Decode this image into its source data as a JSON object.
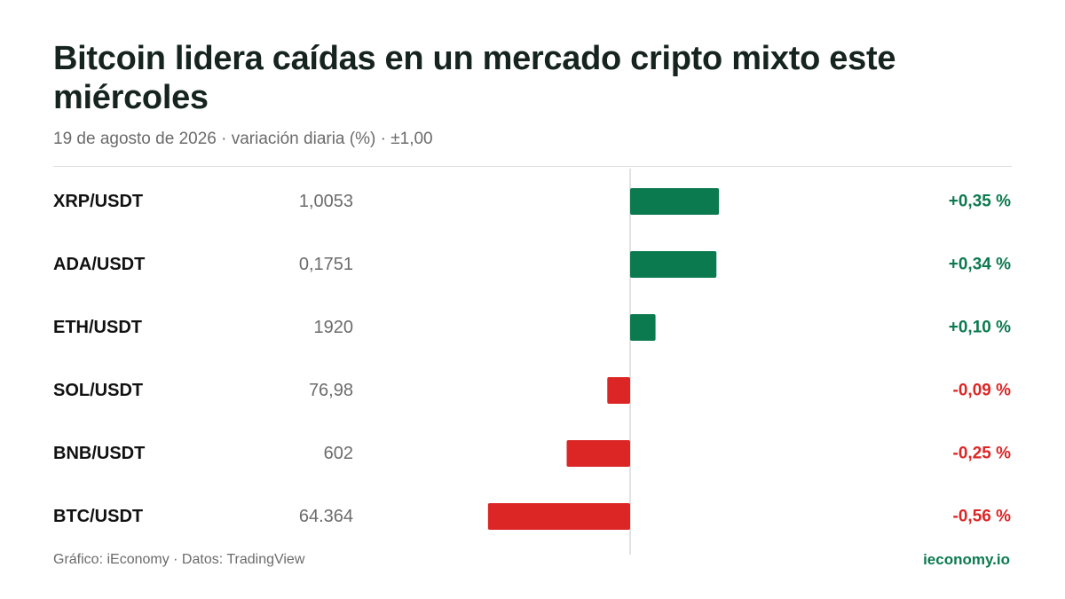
{
  "title": "Bitcoin lidera caídas en un mercado cripto mixto este miércoles",
  "subtitle": "19 de agosto de 2026 · variación diaria (%) · ±1,00",
  "footer": {
    "source": "Gráfico: iEconomy · Datos: TradingView",
    "brand": "ieconomy.io"
  },
  "colors": {
    "positive": "#0c7a4f",
    "negative": "#dc2626",
    "pair_text": "#111111",
    "price_text": "#6b6b6b",
    "axis": "#d9d9d9"
  },
  "chart_data": {
    "type": "bar",
    "orientation": "horizontal",
    "xlim": [
      -1,
      1
    ],
    "categories": [
      "XRP/USDT",
      "ADA/USDT",
      "ETH/USDT",
      "SOL/USDT",
      "BNB/USDT",
      "BTC/USDT"
    ],
    "prices": [
      "1,0053",
      "0,1751",
      "1920",
      "76,98",
      "602",
      "64.364"
    ],
    "values": [
      0.35,
      0.34,
      0.1,
      -0.09,
      -0.25,
      -0.56
    ],
    "value_labels": [
      "+0,35 %",
      "+0,34 %",
      "+0,10 %",
      "-0,09 %",
      "-0,25 %",
      "-0,56 %"
    ]
  }
}
